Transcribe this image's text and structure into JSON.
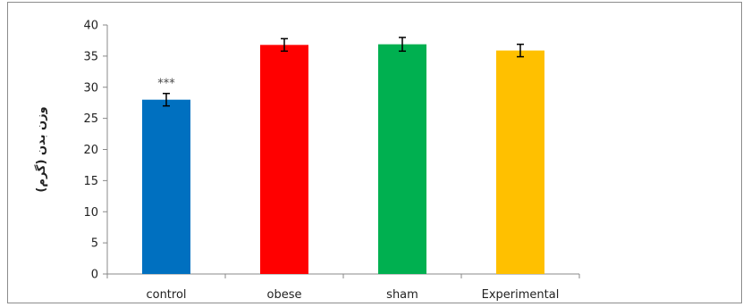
{
  "chart_data": {
    "type": "bar",
    "title": "",
    "xlabel": "",
    "ylabel": "وزن بدن (گرم)",
    "ylim": [
      0,
      40
    ],
    "yticks": [
      0,
      5,
      10,
      15,
      20,
      25,
      30,
      35,
      40
    ],
    "categories": [
      "control",
      "obese",
      "sham",
      "Experimental"
    ],
    "values": [
      28.0,
      36.8,
      36.9,
      35.9
    ],
    "errors": [
      1.0,
      1.0,
      1.1,
      1.0
    ],
    "colors": [
      "#0070C0",
      "#FF0000",
      "#00B050",
      "#FFC000"
    ],
    "annotations": [
      "***",
      "",
      "",
      ""
    ],
    "grid": false,
    "legend": "none"
  }
}
